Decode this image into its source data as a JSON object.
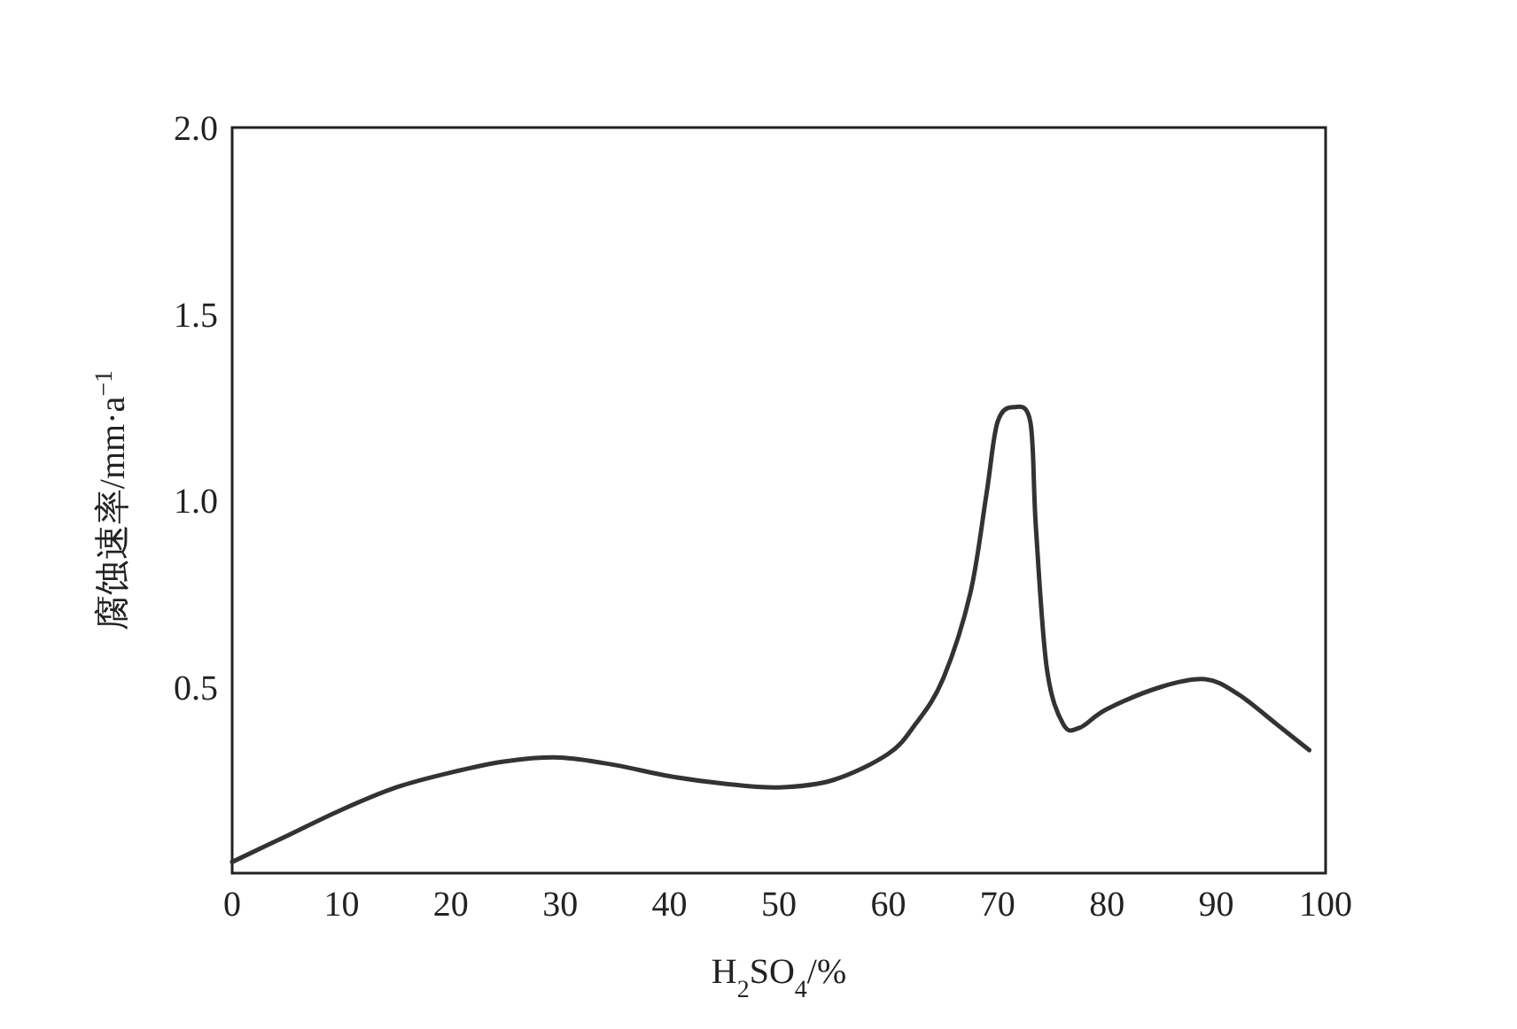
{
  "chart_data": {
    "type": "line",
    "xlabel": "H$_{2}$SO$_{4}$/%",
    "ylabel": "腐蚀速率/mm·a$^{−1}$",
    "x": [
      0,
      5,
      10,
      15,
      20,
      25,
      30,
      35,
      40,
      45,
      50,
      55,
      60,
      62.5,
      65,
      67.5,
      69,
      70,
      71.5,
      73,
      73.5,
      74.5,
      76,
      77.5,
      80,
      85,
      89,
      92,
      95.5,
      98.5
    ],
    "series": [
      {
        "color": "#333333",
        "values": [
          0.03,
          0.1,
          0.17,
          0.23,
          0.27,
          0.3,
          0.31,
          0.29,
          0.26,
          0.24,
          0.23,
          0.25,
          0.32,
          0.4,
          0.52,
          0.75,
          1.02,
          1.21,
          1.25,
          1.21,
          0.93,
          0.55,
          0.4,
          0.39,
          0.44,
          0.5,
          0.52,
          0.48,
          0.4,
          0.33
        ]
      }
    ],
    "xlim": [
      0,
      100
    ],
    "ylim": [
      0,
      2
    ],
    "xticks": [
      0,
      10,
      20,
      30,
      40,
      50,
      60,
      70,
      80,
      90,
      100
    ],
    "yticks": [
      0.5,
      {
        "value": 1,
        "label": "1.0"
      },
      1.5,
      {
        "value": 2,
        "label": "2.0"
      }
    ],
    "grid": false,
    "marker": "none",
    "line_style": "solid"
  }
}
